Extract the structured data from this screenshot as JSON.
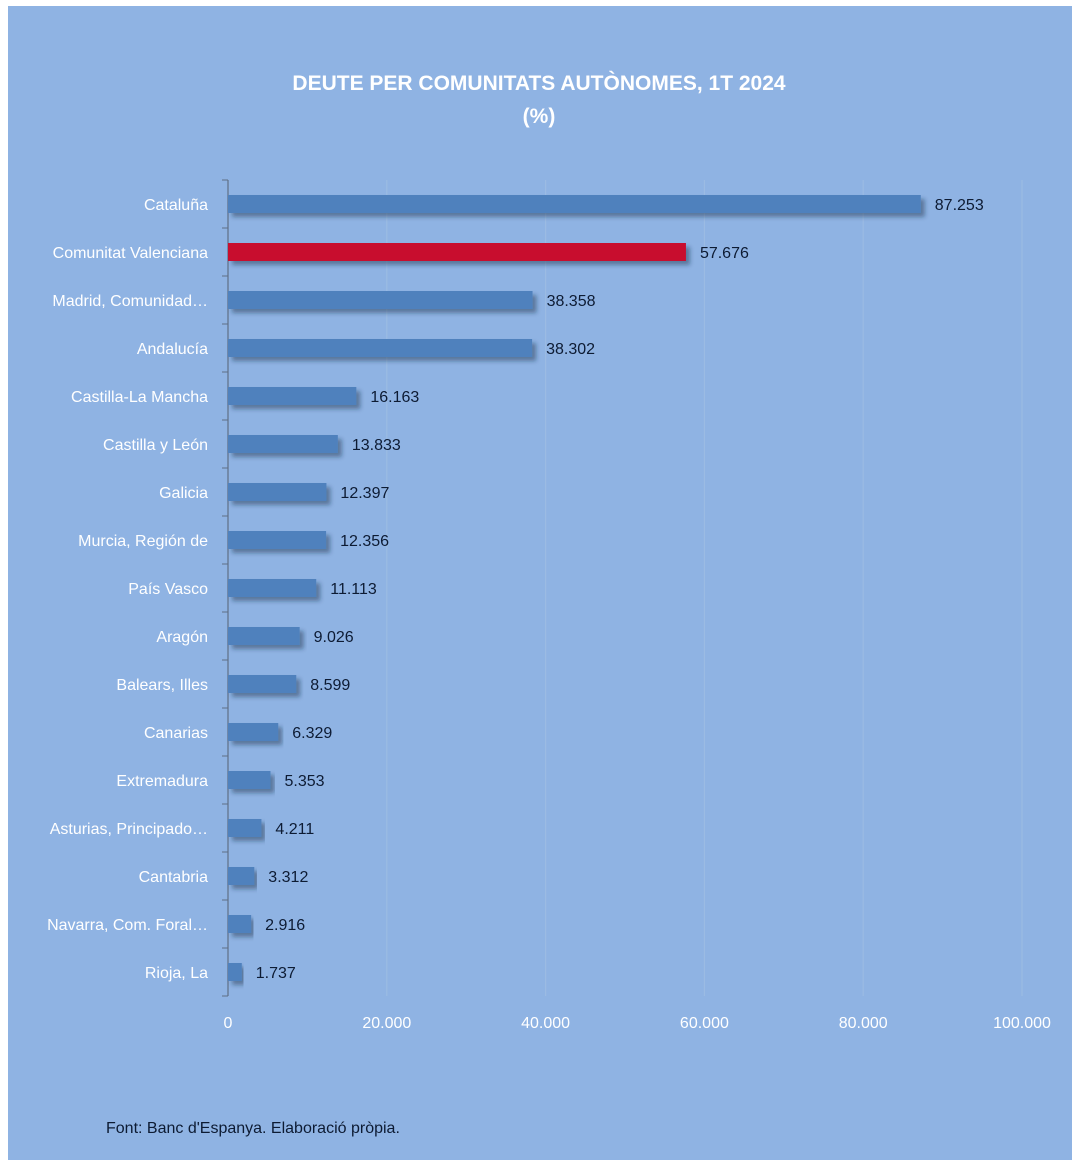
{
  "colors": {
    "background": "#8fb3e3",
    "bar": "#4f81bd",
    "highlight_bar": "#c8102e",
    "gridline": "#9bbbe3",
    "label_text": "#ffffff",
    "value_text": "#0d1b33"
  },
  "chart_data": {
    "type": "bar",
    "orientation": "horizontal",
    "title": "DEUTE PER COMUNITATS AUTÒNOMES, 1T 2024",
    "subtitle": "(%)",
    "xlabel": "",
    "ylabel": "",
    "xlim": [
      0,
      100000
    ],
    "x_ticks": [
      0,
      20000,
      40000,
      60000,
      80000,
      100000
    ],
    "x_tick_labels": [
      "0",
      "20.000",
      "40.000",
      "60.000",
      "80.000",
      "100.000"
    ],
    "grid": "vertical",
    "legend": "none",
    "highlight_category": "Comunitat Valenciana",
    "categories": [
      "Cataluña",
      "Comunitat Valenciana",
      "Madrid, Comunidad…",
      "Andalucía",
      "Castilla-La Mancha",
      "Castilla y León",
      "Galicia",
      "Murcia, Región de",
      "País Vasco",
      "Aragón",
      "Balears, Illes",
      "Canarias",
      "Extremadura",
      "Asturias, Principado…",
      "Cantabria",
      "Navarra, Com. Foral…",
      "Rioja, La"
    ],
    "values": [
      87253,
      57676,
      38358,
      38302,
      16163,
      13833,
      12397,
      12356,
      11113,
      9026,
      8599,
      6329,
      5353,
      4211,
      3312,
      2916,
      1737
    ],
    "value_labels": [
      "87.253",
      "57.676",
      "38.358",
      "38.302",
      "16.163",
      "13.833",
      "12.397",
      "12.356",
      "11.113",
      "9.026",
      "8.599",
      "6.329",
      "5.353",
      "4.211",
      "3.312",
      "2.916",
      "1.737"
    ]
  },
  "source_note": "Font: Banc d'Espanya. Elaboració pròpia."
}
